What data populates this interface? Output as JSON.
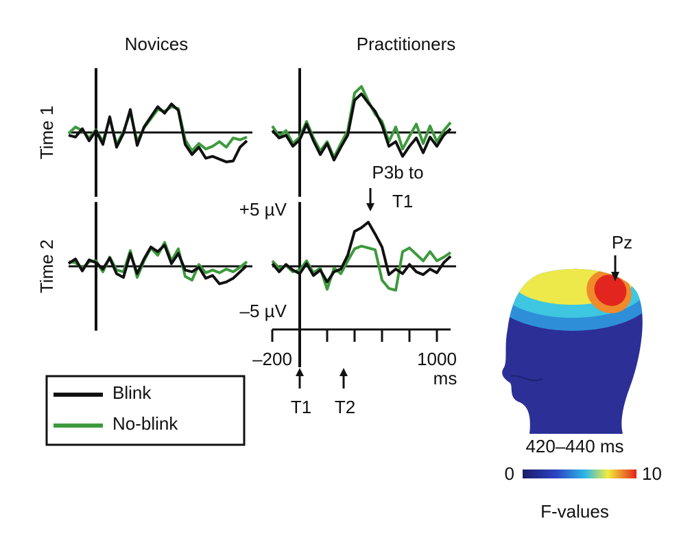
{
  "chart_data": {
    "type": "line",
    "columns": [
      "Novices",
      "Practitioners"
    ],
    "rows": [
      "Time 1",
      "Time 2"
    ],
    "x": [
      -200,
      -150,
      -100,
      -50,
      0,
      50,
      100,
      150,
      200,
      250,
      300,
      350,
      400,
      450,
      500,
      550,
      600,
      650,
      700,
      750,
      800,
      850,
      900,
      950,
      1000,
      1050,
      1100
    ],
    "xlim": [
      -200,
      1100
    ],
    "ylim": [
      -7,
      7
    ],
    "xticks": [
      {
        "value": -200,
        "label": "–200"
      },
      {
        "value": 0,
        "label": null
      },
      {
        "value": 200,
        "label": null
      },
      {
        "value": 400,
        "label": null
      },
      {
        "value": 600,
        "label": null
      },
      {
        "value": 800,
        "label": null
      },
      1000
    ],
    "x_unit": "ms",
    "yticks": [
      {
        "value": 5,
        "label": "+5 µV"
      },
      {
        "value": -5,
        "label": "–5 µV"
      }
    ],
    "series": [
      {
        "name": "Blink",
        "color": "#111111",
        "values": [
          [
            [
              -0.3,
              -0.5,
              0.4,
              -0.9,
              0.2,
              -1.3,
              1.7,
              -1.6,
              -0.1,
              2.5,
              -1.4,
              0.6,
              1.7,
              2.8,
              2.1,
              3.1,
              2.4,
              -1.3,
              -2.4,
              -1.6,
              -2.8,
              -2.6,
              -2.9,
              -3.2,
              -3.1,
              -1.6,
              -0.9
            ],
            [
              0.2,
              -0.6,
              -0.3,
              -1.5,
              -0.8,
              0.9,
              -0.9,
              -2.4,
              -1.2,
              -3.0,
              -1.6,
              -0.3,
              3.5,
              4.2,
              3.2,
              2.3,
              0.8,
              -1.5,
              -1.0,
              -2.6,
              -1.5,
              -0.6,
              -2.2,
              -0.5,
              -1.5,
              -0.3,
              0.4
            ]
          ],
          [
            [
              0.3,
              0.8,
              -0.5,
              0.7,
              0.4,
              -0.3,
              0.9,
              -0.8,
              -1.2,
              1.4,
              -0.8,
              0.8,
              2.1,
              1.6,
              2.3,
              0.3,
              1.4,
              -0.4,
              -0.6,
              -0.1,
              -1.3,
              -1.0,
              -1.9,
              -1.7,
              -1.3,
              -0.6,
              0.1
            ],
            [
              0.3,
              -0.6,
              0.2,
              -0.4,
              -0.8,
              0.3,
              -1.0,
              -0.4,
              -1.7,
              -0.6,
              -0.3,
              1.2,
              3.8,
              4.2,
              4.8,
              3.5,
              2.1,
              -0.9,
              -0.3,
              -0.8,
              0.2,
              -0.6,
              -0.9,
              -0.3,
              -0.7,
              0.4,
              1.1
            ]
          ]
        ]
      },
      {
        "name": "No-blink",
        "color": "#3d9a3d",
        "values": [
          [
            [
              -0.1,
              0.6,
              0.2,
              -0.6,
              0.3,
              -1.0,
              1.5,
              -1.3,
              0.1,
              2.2,
              -1.0,
              0.5,
              1.5,
              2.5,
              2.3,
              2.8,
              2.6,
              -0.8,
              -2.0,
              -1.2,
              -1.8,
              -1.5,
              -1.0,
              -1.6,
              -0.6,
              -0.8,
              -0.5
            ],
            [
              0.7,
              -0.4,
              0.2,
              -1.2,
              -0.5,
              1.2,
              -0.6,
              -2.0,
              -1.0,
              -2.7,
              -1.2,
              0.2,
              4.3,
              5.0,
              3.4,
              2.0,
              1.2,
              -1.0,
              0.6,
              -1.8,
              -0.4,
              0.9,
              -1.2,
              0.7,
              -1.0,
              0.2,
              1.1
            ]
          ],
          [
            [
              0.5,
              0.4,
              -0.2,
              0.5,
              0.6,
              -0.6,
              1.0,
              -0.4,
              -0.6,
              1.7,
              -1.2,
              0.6,
              2.0,
              1.2,
              2.6,
              0.6,
              1.9,
              -1.1,
              -1.5,
              0.2,
              -0.7,
              -0.4,
              -0.7,
              -0.3,
              -0.6,
              -0.1,
              0.5
            ],
            [
              0.6,
              -0.2,
              0.1,
              -0.6,
              -0.4,
              0.6,
              -0.7,
              -0.2,
              -2.5,
              -0.2,
              -0.8,
              0.6,
              1.9,
              2.2,
              2.0,
              1.8,
              -1.5,
              -2.4,
              -2.6,
              1.6,
              2.0,
              1.3,
              0.6,
              1.6,
              0.6,
              1.0,
              1.5
            ]
          ]
        ]
      }
    ],
    "events": [
      {
        "label": "T1",
        "x": 0
      },
      {
        "label": "T2",
        "x": 320
      }
    ],
    "annotations": [
      {
        "lines": [
          "P3b to",
          "T1"
        ],
        "x": 515
      }
    ],
    "topography": {
      "electrode": "Pz",
      "window": "420–440 ms",
      "colorbar": {
        "label": "F-values",
        "lim": [
          0,
          10
        ],
        "ticks": [
          0,
          10
        ]
      }
    }
  }
}
